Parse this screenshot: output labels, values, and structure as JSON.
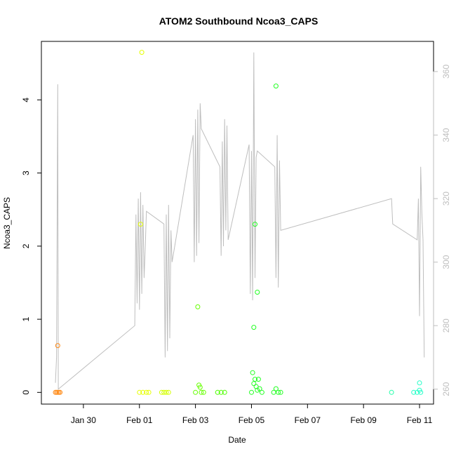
{
  "chart_data": {
    "type": "scatter",
    "title": "ATOM2 Southbound Ncoa3_CAPS",
    "xlabel": "Date",
    "ylabel": "Ncoa3_CAPS",
    "x_axis": {
      "range": [
        "2024-01-28T12:00",
        "2024-02-11T12:00"
      ],
      "ticks": [
        {
          "date": "2024-01-30T00:00",
          "label": "Jan 30"
        },
        {
          "date": "2024-02-01T00:00",
          "label": "Feb 01"
        },
        {
          "date": "2024-02-03T00:00",
          "label": "Feb 03"
        },
        {
          "date": "2024-02-05T00:00",
          "label": "Feb 05"
        },
        {
          "date": "2024-02-07T00:00",
          "label": "Feb 07"
        },
        {
          "date": "2024-02-09T00:00",
          "label": "Feb 09"
        },
        {
          "date": "2024-02-11T00:00",
          "label": "Feb 11"
        }
      ]
    },
    "y_left": {
      "range": [
        -0.16,
        4.8
      ],
      "ticks": [
        0,
        1,
        2,
        3,
        4
      ]
    },
    "y_right": {
      "range": [
        255.3,
        369.5
      ],
      "ticks": [
        260,
        280,
        300,
        320,
        340,
        360
      ],
      "color": "#bebebe"
    },
    "grid": false,
    "points": [
      {
        "date": "2024-01-29T02:00",
        "value": 0.64,
        "color": "#ff8c1a"
      },
      {
        "date": "2024-01-29T00:00",
        "value": 0.0,
        "color": "#ff8c1a"
      },
      {
        "date": "2024-01-29T01:00",
        "value": 0.0,
        "color": "#ff8c1a"
      },
      {
        "date": "2024-01-29T02:00",
        "value": 0.0,
        "color": "#ff8c1a"
      },
      {
        "date": "2024-01-29T03:00",
        "value": 0.0,
        "color": "#ff8c1a"
      },
      {
        "date": "2024-01-29T04:00",
        "value": 0.0,
        "color": "#ff8c1a"
      },
      {
        "date": "2024-02-01T00:00",
        "value": 0.0,
        "color": "#e6ff00"
      },
      {
        "date": "2024-02-01T02:00",
        "value": 4.65,
        "color": "#e6ff00"
      },
      {
        "date": "2024-02-01T01:00",
        "value": 2.3,
        "color": "#e6ff00"
      },
      {
        "date": "2024-02-01T03:00",
        "value": 0.0,
        "color": "#e6ff00"
      },
      {
        "date": "2024-02-01T06:00",
        "value": 0.0,
        "color": "#e6ff00"
      },
      {
        "date": "2024-02-01T08:00",
        "value": 0.0,
        "color": "#e6ff00"
      },
      {
        "date": "2024-02-01T19:00",
        "value": 0.0,
        "color": "#d4ff00"
      },
      {
        "date": "2024-02-01T21:00",
        "value": 0.0,
        "color": "#d4ff00"
      },
      {
        "date": "2024-02-01T23:00",
        "value": 0.0,
        "color": "#d4ff00"
      },
      {
        "date": "2024-02-02T01:00",
        "value": 0.0,
        "color": "#d4ff00"
      },
      {
        "date": "2024-02-03T00:00",
        "value": 0.0,
        "color": "#66ff00"
      },
      {
        "date": "2024-02-03T02:00",
        "value": 1.17,
        "color": "#66ff00"
      },
      {
        "date": "2024-02-03T03:00",
        "value": 0.1,
        "color": "#66ff00"
      },
      {
        "date": "2024-02-03T04:00",
        "value": 0.07,
        "color": "#66ff00"
      },
      {
        "date": "2024-02-03T05:00",
        "value": 0.0,
        "color": "#66ff00"
      },
      {
        "date": "2024-02-03T07:00",
        "value": 0.0,
        "color": "#66ff00"
      },
      {
        "date": "2024-02-03T19:00",
        "value": 0.0,
        "color": "#4dff00"
      },
      {
        "date": "2024-02-03T22:00",
        "value": 0.0,
        "color": "#4dff00"
      },
      {
        "date": "2024-02-04T01:00",
        "value": 0.0,
        "color": "#4dff00"
      },
      {
        "date": "2024-02-05T00:00",
        "value": 0.0,
        "color": "#22ff22"
      },
      {
        "date": "2024-02-05T02:00",
        "value": 0.89,
        "color": "#22ff22"
      },
      {
        "date": "2024-02-05T03:00",
        "value": 2.3,
        "color": "#22ff22"
      },
      {
        "date": "2024-02-05T05:00",
        "value": 1.37,
        "color": "#22ff22"
      },
      {
        "date": "2024-02-05T01:00",
        "value": 0.27,
        "color": "#22ff22"
      },
      {
        "date": "2024-02-05T03:00",
        "value": 0.18,
        "color": "#22ff22"
      },
      {
        "date": "2024-02-05T06:00",
        "value": 0.18,
        "color": "#22ff22"
      },
      {
        "date": "2024-02-05T02:00",
        "value": 0.12,
        "color": "#22ff22"
      },
      {
        "date": "2024-02-05T04:00",
        "value": 0.08,
        "color": "#22ff22"
      },
      {
        "date": "2024-02-05T07:00",
        "value": 0.05,
        "color": "#22ff22"
      },
      {
        "date": "2024-02-05T05:00",
        "value": 0.03,
        "color": "#22ff22"
      },
      {
        "date": "2024-02-05T09:00",
        "value": 0.0,
        "color": "#22ff22"
      },
      {
        "date": "2024-02-05T21:00",
        "value": 4.19,
        "color": "#22ff22"
      },
      {
        "date": "2024-02-05T21:00",
        "value": 0.05,
        "color": "#22ff22"
      },
      {
        "date": "2024-02-05T19:00",
        "value": 0.0,
        "color": "#22ff22"
      },
      {
        "date": "2024-02-05T23:00",
        "value": 0.0,
        "color": "#22ff22"
      },
      {
        "date": "2024-02-06T01:00",
        "value": 0.0,
        "color": "#22ff22"
      },
      {
        "date": "2024-02-10T00:00",
        "value": 0.0,
        "color": "#22ffaa"
      },
      {
        "date": "2024-02-10T19:00",
        "value": 0.0,
        "color": "#22ffc8"
      },
      {
        "date": "2024-02-10T22:00",
        "value": 0.0,
        "color": "#22ffc8"
      },
      {
        "date": "2024-02-11T00:00",
        "value": 0.13,
        "color": "#22ffc8"
      },
      {
        "date": "2024-02-11T00:00",
        "value": 0.03,
        "color": "#22ffc8"
      },
      {
        "date": "2024-02-11T01:00",
        "value": 0.0,
        "color": "#22ffc8"
      }
    ],
    "line_series": {
      "axis": "right",
      "color": "#bebebe",
      "points": [
        [
          "2024-01-29T00:00",
          262
        ],
        [
          "2024-01-29T01:00",
          270
        ],
        [
          "2024-01-29T02:00",
          356
        ],
        [
          "2024-01-29T02:30",
          260
        ],
        [
          "2024-01-31T20:00",
          280
        ],
        [
          "2024-01-31T21:00",
          315
        ],
        [
          "2024-01-31T22:00",
          287
        ],
        [
          "2024-01-31T23:00",
          320
        ],
        [
          "2024-02-01T00:00",
          285
        ],
        [
          "2024-02-01T01:00",
          322
        ],
        [
          "2024-02-01T02:00",
          290
        ],
        [
          "2024-02-01T03:00",
          318
        ],
        [
          "2024-02-01T04:00",
          295
        ],
        [
          "2024-02-01T05:00",
          305
        ],
        [
          "2024-02-01T06:00",
          316
        ],
        [
          "2024-02-01T21:00",
          312
        ],
        [
          "2024-02-01T22:00",
          270
        ],
        [
          "2024-02-01T23:00",
          315
        ],
        [
          "2024-02-02T00:00",
          272
        ],
        [
          "2024-02-02T01:00",
          318
        ],
        [
          "2024-02-02T02:00",
          276
        ],
        [
          "2024-02-02T03:00",
          310
        ],
        [
          "2024-02-02T04:00",
          300
        ],
        [
          "2024-02-02T22:00",
          340
        ],
        [
          "2024-02-02T23:00",
          300
        ],
        [
          "2024-02-03T00:00",
          345
        ],
        [
          "2024-02-03T01:00",
          302
        ],
        [
          "2024-02-03T02:00",
          348
        ],
        [
          "2024-02-03T03:00",
          306
        ],
        [
          "2024-02-03T04:00",
          350
        ],
        [
          "2024-02-03T05:00",
          342
        ],
        [
          "2024-02-03T21:00",
          330
        ],
        [
          "2024-02-03T22:00",
          302
        ],
        [
          "2024-02-03T23:00",
          338
        ],
        [
          "2024-02-04T00:00",
          305
        ],
        [
          "2024-02-04T01:00",
          345
        ],
        [
          "2024-02-04T02:00",
          310
        ],
        [
          "2024-02-04T03:00",
          343
        ],
        [
          "2024-02-04T04:00",
          307
        ],
        [
          "2024-02-04T22:00",
          337
        ],
        [
          "2024-02-04T23:00",
          290
        ],
        [
          "2024-02-05T00:00",
          335
        ],
        [
          "2024-02-05T01:00",
          288
        ],
        [
          "2024-02-05T02:00",
          366
        ],
        [
          "2024-02-05T03:00",
          295
        ],
        [
          "2024-02-05T04:00",
          333
        ],
        [
          "2024-02-05T05:00",
          335
        ],
        [
          "2024-02-05T20:00",
          330
        ],
        [
          "2024-02-05T21:00",
          295
        ],
        [
          "2024-02-05T22:00",
          340
        ],
        [
          "2024-02-05T23:00",
          292
        ],
        [
          "2024-02-06T00:00",
          332
        ],
        [
          "2024-02-06T01:00",
          310
        ],
        [
          "2024-02-10T00:00",
          320
        ],
        [
          "2024-02-10T01:00",
          312
        ],
        [
          "2024-02-10T22:00",
          307
        ],
        [
          "2024-02-10T23:00",
          320
        ],
        [
          "2024-02-11T00:00",
          283
        ],
        [
          "2024-02-11T01:00",
          330
        ],
        [
          "2024-02-11T02:00",
          315
        ],
        [
          "2024-02-11T03:00",
          307
        ],
        [
          "2024-02-11T04:00",
          270
        ]
      ]
    }
  }
}
